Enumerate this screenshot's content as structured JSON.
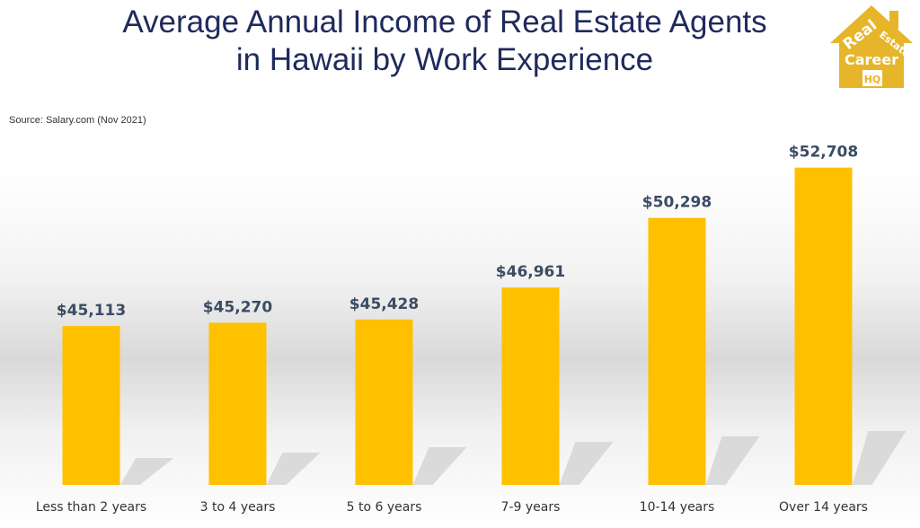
{
  "chart_data": {
    "type": "bar",
    "title_lines": [
      "Average Annual Income of Real Estate Agents",
      "in Hawaii by Work Experience"
    ],
    "source": "Source: Salary.com (Nov 2021)",
    "categories": [
      "Less than 2 years",
      "3 to 4 years",
      "5 to 6 years",
      "7-9 years",
      "10-14 years",
      "Over 14 years"
    ],
    "values": [
      45113,
      45270,
      45428,
      46961,
      50298,
      52708
    ],
    "value_labels": [
      "$45,113",
      "$45,270",
      "$45,428",
      "$46,961",
      "$50,298",
      "$52,708"
    ],
    "xlabel": "",
    "ylabel": "",
    "ylim": [
      37500,
      54500
    ],
    "grid": false,
    "legend": "none",
    "bar_color": "#ffc000",
    "shadow_color": "#cfcfcf"
  },
  "logo": {
    "line1": "Real",
    "line2": "Estate",
    "line3": "Career",
    "line4": "HQ",
    "color": "#e6b52a"
  }
}
